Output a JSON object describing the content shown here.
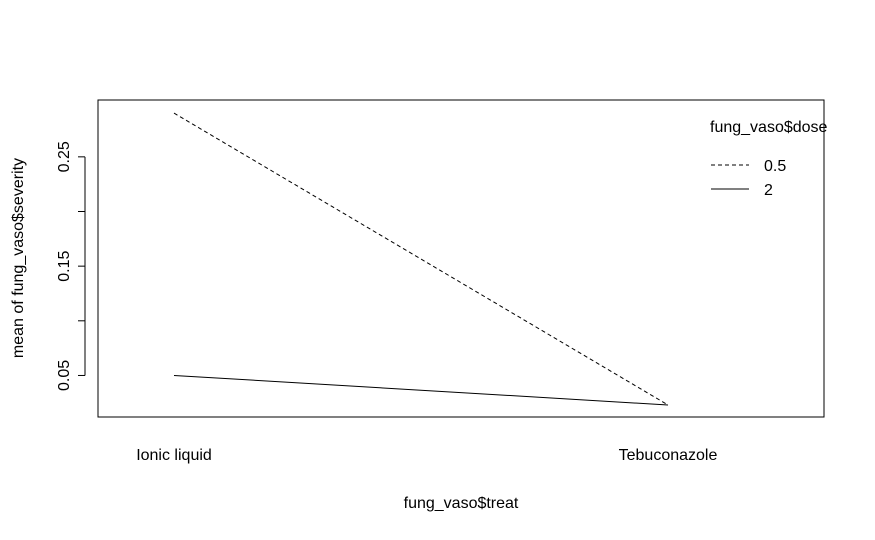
{
  "chart_data": {
    "type": "line",
    "title": "",
    "xlabel": "fung_vaso$treat",
    "ylabel": "mean of  fung_vaso$severity",
    "categories": [
      "Ionic liquid",
      "Tebuconazole"
    ],
    "ylim": [
      0.012,
      0.302
    ],
    "yticks": [
      0.05,
      0.1,
      0.15,
      0.2,
      0.25
    ],
    "ytick_labels": [
      "0.05",
      "",
      "0.15",
      "",
      "0.25"
    ],
    "legend": {
      "title": "fung_vaso$dose",
      "position": "top-right",
      "entries": [
        "0.5",
        "2"
      ]
    },
    "series": [
      {
        "name": "0.5",
        "values": [
          0.29,
          0.023
        ],
        "linestyle": "dashed",
        "color": "#000000"
      },
      {
        "name": "2",
        "values": [
          0.05,
          0.023
        ],
        "linestyle": "solid",
        "color": "#000000"
      }
    ],
    "grid": false
  }
}
